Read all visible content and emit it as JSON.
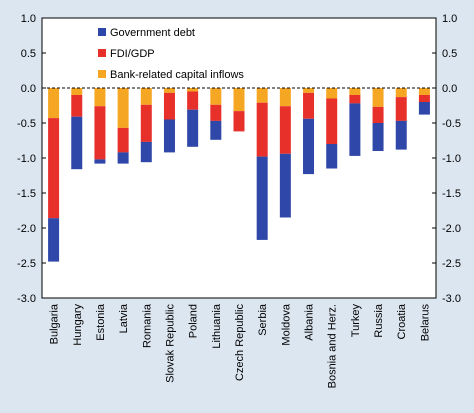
{
  "chart_data": {
    "type": "bar",
    "stacked": true,
    "title": "",
    "xlabel": "",
    "ylabel": "",
    "ylim": [
      -3.0,
      1.0
    ],
    "yticks": [
      "1.0",
      "0.5",
      "0.0",
      "-0.5",
      "-1.0",
      "-1.5",
      "-2.0",
      "-2.5",
      "-3.0"
    ],
    "ytick_values": [
      1.0,
      0.5,
      0.0,
      -0.5,
      -1.0,
      -1.5,
      -2.0,
      -2.5,
      -3.0
    ],
    "secondary_y_axis": true,
    "grid": false,
    "legend_position": "top-left",
    "categories": [
      "Bulgaria",
      "Hungary",
      "Estonia",
      "Latvia",
      "Romania",
      "Slovak Republic",
      "Poland",
      "Lithuania",
      "Czech Republic",
      "Serbia",
      "Moldova",
      "Albania",
      "Bosnia and Herz.",
      "Turkey",
      "Russia",
      "Croatia",
      "Belarus"
    ],
    "series": [
      {
        "name": "Bank-related capital inflows",
        "color": "#f5a623",
        "values": [
          -0.43,
          -0.1,
          -0.26,
          -0.57,
          -0.24,
          -0.07,
          -0.05,
          -0.24,
          -0.33,
          -0.21,
          -0.26,
          -0.07,
          -0.15,
          -0.1,
          -0.27,
          -0.13,
          -0.1
        ]
      },
      {
        "name": "FDI/GDP",
        "color": "#e8302b",
        "values": [
          -1.43,
          -0.31,
          -0.76,
          -0.35,
          -0.53,
          -0.38,
          -0.26,
          -0.23,
          -0.29,
          -0.77,
          -0.68,
          -0.37,
          -0.65,
          -0.12,
          -0.23,
          -0.34,
          -0.1
        ]
      },
      {
        "name": "Government debt",
        "color": "#2e47a8",
        "values": [
          -0.62,
          -0.75,
          -0.06,
          -0.16,
          -0.29,
          -0.47,
          -0.53,
          -0.27,
          -0.0,
          -1.19,
          -0.91,
          -0.79,
          -0.35,
          -0.75,
          -0.4,
          -0.41,
          -0.18
        ]
      }
    ],
    "extra_totals_note": "",
    "legend_order": [
      "Government debt",
      "FDI/GDP",
      "Bank-related capital inflows"
    ]
  }
}
